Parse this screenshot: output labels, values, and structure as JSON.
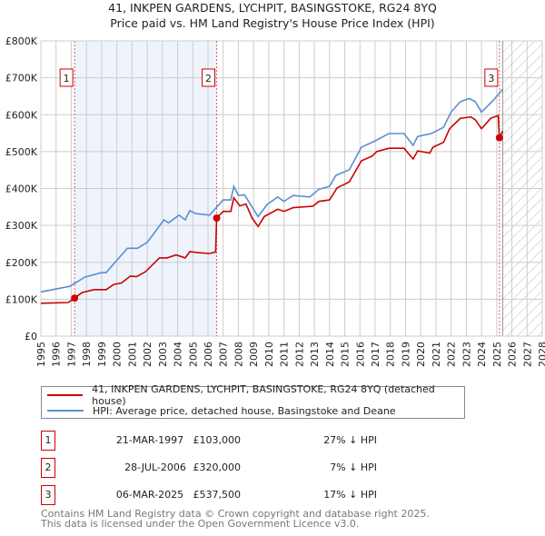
{
  "title_line1": "41, INKPEN GARDENS, LYCHPIT, BASINGSTOKE, RG24 8YQ",
  "title_line2": "Price paid vs. HM Land Registry's House Price Index (HPI)",
  "legend": {
    "property": "41, INKPEN GARDENS, LYCHPIT, BASINGSTOKE, RG24 8YQ (detached house)",
    "hpi": "HPI: Average price, detached house, Basingstoke and Deane"
  },
  "sales": [
    {
      "num": "1",
      "date": "21-MAR-1997",
      "price": "£103,000",
      "hpi": "27% ↓ HPI",
      "year": 1997.22,
      "value": 103
    },
    {
      "num": "2",
      "date": "28-JUL-2006",
      "price": "£320,000",
      "hpi": "7% ↓ HPI",
      "year": 2006.57,
      "value": 320
    },
    {
      "num": "3",
      "date": "06-MAR-2025",
      "price": "£537,500",
      "hpi": "17% ↓ HPI",
      "year": 2025.18,
      "value": 537.5
    }
  ],
  "footer": {
    "line1": "Contains HM Land Registry data © Crown copyright and database right 2025.",
    "line2": "This data is licensed under the Open Government Licence v3.0."
  },
  "colors": {
    "property": "#cc0000",
    "hpi": "#5b8fd0",
    "shade": "#eef3fc",
    "grid": "#cccccc"
  },
  "chart_data": {
    "type": "line",
    "xlim": [
      1995,
      2028
    ],
    "ylim": [
      0,
      800
    ],
    "y_unit": "£K",
    "yticks": [
      "£0",
      "£100K",
      "£200K",
      "£300K",
      "£400K",
      "£500K",
      "£600K",
      "£700K",
      "£800K"
    ],
    "xticks": [
      "1995",
      "1996",
      "1997",
      "1998",
      "1999",
      "2000",
      "2001",
      "2002",
      "2003",
      "2004",
      "2005",
      "2006",
      "2007",
      "2008",
      "2009",
      "2010",
      "2011",
      "2012",
      "2013",
      "2014",
      "2015",
      "2016",
      "2017",
      "2018",
      "2019",
      "2020",
      "2021",
      "2022",
      "2023",
      "2024",
      "2025",
      "2026",
      "2027",
      "2028"
    ],
    "forecast_from": 2025.4,
    "series": [
      {
        "name": "property",
        "points": [
          [
            1995,
            89
          ],
          [
            1996.8,
            91
          ],
          [
            1997.22,
            103
          ],
          [
            1997.7,
            118
          ],
          [
            1998.5,
            126
          ],
          [
            1999.3,
            126
          ],
          [
            1999.8,
            140
          ],
          [
            2000.3,
            144
          ],
          [
            2000.9,
            163
          ],
          [
            2001.3,
            161
          ],
          [
            2001.9,
            175
          ],
          [
            2002.8,
            212
          ],
          [
            2003.3,
            212
          ],
          [
            2003.9,
            220
          ],
          [
            2004.5,
            212
          ],
          [
            2004.8,
            229
          ],
          [
            2005.4,
            226
          ],
          [
            2006.1,
            224
          ],
          [
            2006.5,
            228
          ],
          [
            2006.57,
            320
          ],
          [
            2007.0,
            338
          ],
          [
            2007.5,
            338
          ],
          [
            2007.7,
            375
          ],
          [
            2008.1,
            353
          ],
          [
            2008.5,
            358
          ],
          [
            2008.9,
            320
          ],
          [
            2009.3,
            297
          ],
          [
            2009.7,
            324
          ],
          [
            2010.6,
            344
          ],
          [
            2011.0,
            338
          ],
          [
            2011.6,
            348
          ],
          [
            2012.9,
            352
          ],
          [
            2013.3,
            365
          ],
          [
            2014.0,
            369
          ],
          [
            2014.5,
            402
          ],
          [
            2015.3,
            418
          ],
          [
            2016.1,
            475
          ],
          [
            2016.8,
            488
          ],
          [
            2017.1,
            500
          ],
          [
            2017.9,
            509
          ],
          [
            2018.9,
            509
          ],
          [
            2019.5,
            480
          ],
          [
            2019.8,
            502
          ],
          [
            2020.6,
            496
          ],
          [
            2020.8,
            512
          ],
          [
            2021.5,
            525
          ],
          [
            2021.9,
            562
          ],
          [
            2022.6,
            590
          ],
          [
            2023.3,
            594
          ],
          [
            2023.6,
            586
          ],
          [
            2024.0,
            562
          ],
          [
            2024.6,
            590
          ],
          [
            2025.1,
            598
          ],
          [
            2025.18,
            537.5
          ],
          [
            2025.4,
            556
          ]
        ]
      },
      {
        "name": "hpi",
        "points": [
          [
            1995,
            120
          ],
          [
            1996.9,
            135
          ],
          [
            1997.9,
            160
          ],
          [
            1999.0,
            172
          ],
          [
            1999.3,
            172
          ],
          [
            1999.9,
            201
          ],
          [
            2000.7,
            238
          ],
          [
            2001.35,
            238
          ],
          [
            2002.0,
            254
          ],
          [
            2003.1,
            315
          ],
          [
            2003.4,
            307
          ],
          [
            2004.1,
            328
          ],
          [
            2004.5,
            315
          ],
          [
            2004.8,
            340
          ],
          [
            2005.2,
            332
          ],
          [
            2006.1,
            328
          ],
          [
            2007.0,
            369
          ],
          [
            2007.5,
            369
          ],
          [
            2007.7,
            406
          ],
          [
            2008.0,
            381
          ],
          [
            2008.4,
            383
          ],
          [
            2009.3,
            324
          ],
          [
            2009.9,
            357
          ],
          [
            2010.6,
            377
          ],
          [
            2011.0,
            365
          ],
          [
            2011.6,
            381
          ],
          [
            2012.7,
            377
          ],
          [
            2013.3,
            398
          ],
          [
            2014.0,
            406
          ],
          [
            2014.4,
            435
          ],
          [
            2015.3,
            451
          ],
          [
            2016.1,
            512
          ],
          [
            2017.0,
            529
          ],
          [
            2017.9,
            549
          ],
          [
            2018.9,
            549
          ],
          [
            2019.5,
            517
          ],
          [
            2019.8,
            541
          ],
          [
            2020.7,
            549
          ],
          [
            2021.5,
            566
          ],
          [
            2022.0,
            607
          ],
          [
            2022.6,
            635
          ],
          [
            2023.2,
            644
          ],
          [
            2023.6,
            635
          ],
          [
            2024.0,
            607
          ],
          [
            2024.8,
            640
          ],
          [
            2025.4,
            669
          ]
        ]
      }
    ]
  }
}
